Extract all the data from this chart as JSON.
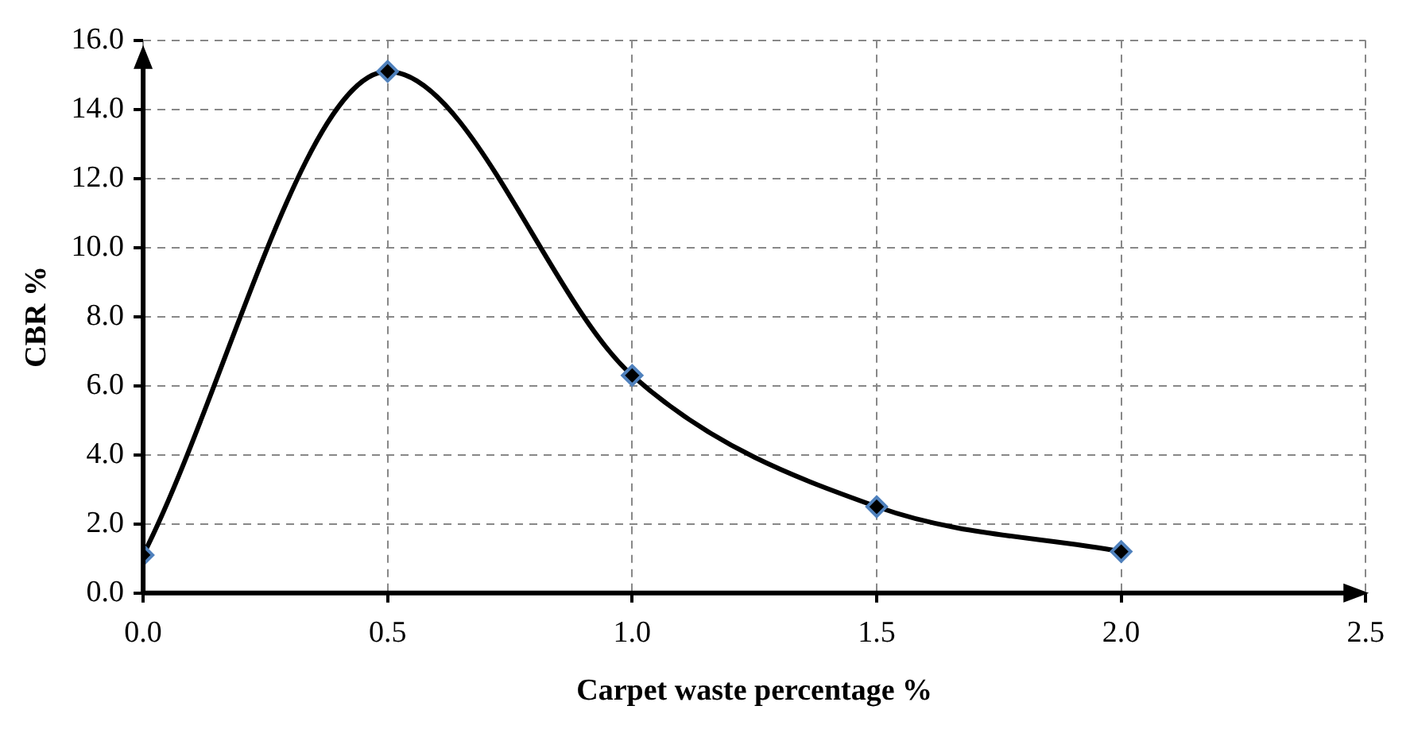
{
  "chart_data": {
    "type": "line",
    "xlabel": "Carpet waste percentage %",
    "ylabel": "CBR %",
    "x": [
      0,
      0.5,
      1.0,
      1.5,
      2.0
    ],
    "series": [
      {
        "color": "#000000",
        "values": [
          1.1,
          15.1,
          6.3,
          2.5,
          1.2
        ]
      }
    ],
    "xlim": [
      0,
      2.5
    ],
    "xticks": [
      {
        "value": 0,
        "label": "0.0"
      },
      {
        "value": 0.5,
        "label": "0.5"
      },
      {
        "value": 1,
        "label": "1.0"
      },
      {
        "value": 1.5,
        "label": "1.5"
      },
      {
        "value": 2,
        "label": "2.0"
      },
      {
        "value": 2.5,
        "label": "2.5"
      }
    ],
    "ylim": [
      0,
      16
    ],
    "yticks": [
      {
        "value": 0,
        "label": "0.0"
      },
      {
        "value": 2,
        "label": "2.0"
      },
      {
        "value": 4,
        "label": "4.0"
      },
      {
        "value": 6,
        "label": "6.0"
      },
      {
        "value": 8,
        "label": "8.0"
      },
      {
        "value": 10,
        "label": "10.0"
      },
      {
        "value": 12,
        "label": "12.0"
      },
      {
        "value": 14,
        "label": "14.0"
      },
      {
        "value": 16,
        "label": "16.0"
      }
    ],
    "grid": true,
    "legend": false,
    "marker": "diamond",
    "line_style": "solid"
  }
}
